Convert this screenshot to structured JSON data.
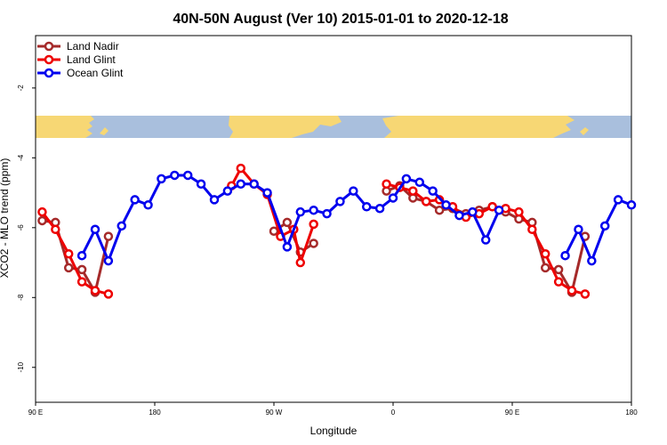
{
  "chart_data": {
    "type": "line",
    "title": "40N-50N August (Ver 10)   2015-01-01 to 2020-12-18",
    "xlabel": "Longitude",
    "ylabel": "XCO2 - MLO trend (ppm)",
    "x_ticks": [
      {
        "value": 90,
        "label": "90 E"
      },
      {
        "value": 180,
        "label": "180"
      },
      {
        "value": 270,
        "label": "90 W"
      },
      {
        "value": 360,
        "label": "0"
      },
      {
        "value": 450,
        "label": "90 E"
      },
      {
        "value": 540,
        "label": "180"
      }
    ],
    "y_ticks": [
      -10,
      -8,
      -6,
      -4,
      -2
    ],
    "xlim": [
      90,
      540
    ],
    "ylim": [
      -11,
      -0.5
    ],
    "grid": false,
    "legend_position": "top-left",
    "colors": {
      "land_nadir": "#a52a2a",
      "land_glint": "#ee0000",
      "ocean_glint": "#0000ee",
      "ocean": "#a9bfdd",
      "land": "#f7d774"
    },
    "series": [
      {
        "name": "Land Nadir",
        "color": "#a52a2a",
        "points": [
          [
            95,
            -5.8
          ],
          [
            105,
            -5.85
          ],
          [
            115,
            -7.15
          ],
          [
            125,
            -7.2
          ],
          [
            135,
            -7.85
          ],
          [
            145,
            -6.25
          ],
          [
            270,
            -6.1
          ],
          [
            280,
            -5.85
          ],
          [
            290,
            -6.7
          ],
          [
            300,
            -6.45
          ],
          [
            355,
            -4.95
          ],
          [
            365,
            -4.8
          ],
          [
            375,
            -5.15
          ],
          [
            385,
            -5.25
          ],
          [
            395,
            -5.5
          ],
          [
            405,
            -5.45
          ],
          [
            415,
            -5.6
          ],
          [
            425,
            -5.5
          ],
          [
            435,
            -5.4
          ],
          [
            445,
            -5.55
          ],
          [
            455,
            -5.75
          ],
          [
            465,
            -5.85
          ],
          [
            475,
            -7.15
          ],
          [
            485,
            -7.2
          ],
          [
            495,
            -7.85
          ],
          [
            505,
            -6.25
          ]
        ]
      },
      {
        "name": "Land Glint",
        "color": "#ee0000",
        "points": [
          [
            95,
            -5.55
          ],
          [
            105,
            -6.05
          ],
          [
            115,
            -6.75
          ],
          [
            125,
            -7.55
          ],
          [
            135,
            -7.8
          ],
          [
            145,
            -7.9
          ],
          [
            238,
            -4.8
          ],
          [
            245,
            -4.3
          ],
          [
            255,
            -4.75
          ],
          [
            265,
            -5.05
          ],
          [
            275,
            -6.25
          ],
          [
            285,
            -6.05
          ],
          [
            290,
            -7.0
          ],
          [
            300,
            -5.9
          ],
          [
            355,
            -4.75
          ],
          [
            365,
            -4.85
          ],
          [
            375,
            -4.95
          ],
          [
            385,
            -5.25
          ],
          [
            395,
            -5.2
          ],
          [
            405,
            -5.4
          ],
          [
            415,
            -5.7
          ],
          [
            425,
            -5.6
          ],
          [
            435,
            -5.4
          ],
          [
            445,
            -5.45
          ],
          [
            455,
            -5.55
          ],
          [
            465,
            -6.05
          ],
          [
            475,
            -6.75
          ],
          [
            485,
            -7.55
          ],
          [
            495,
            -7.8
          ],
          [
            505,
            -7.9
          ]
        ]
      },
      {
        "name": "Ocean Glint",
        "color": "#0000ee",
        "points": [
          [
            125,
            -6.8
          ],
          [
            135,
            -6.05
          ],
          [
            145,
            -6.95
          ],
          [
            155,
            -5.95
          ],
          [
            165,
            -5.2
          ],
          [
            175,
            -5.35
          ],
          [
            185,
            -4.6
          ],
          [
            195,
            -4.5
          ],
          [
            205,
            -4.5
          ],
          [
            215,
            -4.75
          ],
          [
            225,
            -5.2
          ],
          [
            235,
            -4.95
          ],
          [
            245,
            -4.75
          ],
          [
            255,
            -4.75
          ],
          [
            265,
            -5.0
          ],
          [
            280,
            -6.55
          ],
          [
            290,
            -5.55
          ],
          [
            300,
            -5.5
          ],
          [
            310,
            -5.6
          ],
          [
            320,
            -5.25
          ],
          [
            330,
            -4.95
          ],
          [
            340,
            -5.4
          ],
          [
            350,
            -5.45
          ],
          [
            360,
            -5.15
          ],
          [
            370,
            -4.6
          ],
          [
            380,
            -4.7
          ],
          [
            390,
            -4.95
          ],
          [
            400,
            -5.35
          ],
          [
            410,
            -5.65
          ],
          [
            420,
            -5.55
          ],
          [
            430,
            -6.35
          ],
          [
            440,
            -5.5
          ],
          [
            490,
            -6.8
          ],
          [
            500,
            -6.05
          ],
          [
            510,
            -6.95
          ],
          [
            520,
            -5.95
          ],
          [
            530,
            -5.2
          ],
          [
            540,
            -5.35
          ]
        ]
      }
    ]
  }
}
